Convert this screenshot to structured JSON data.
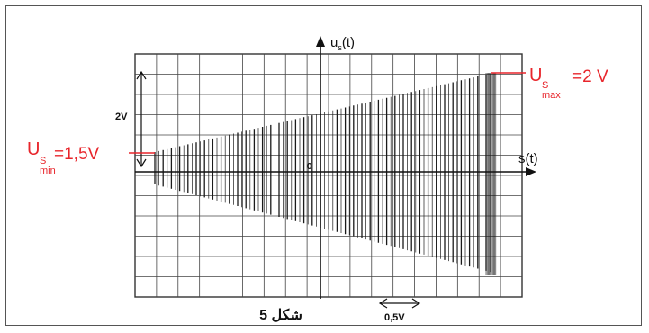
{
  "figure": {
    "caption": "شكل 5",
    "y_axis_label": "u",
    "y_axis_suffix": "(t)",
    "y_axis_sub": "s",
    "x_axis_label": "s(t)",
    "origin_label": "0",
    "vertical_scale_label": "2V",
    "horizontal_scale_label": "0,5V"
  },
  "annotations": {
    "us_min": {
      "symbol": "U",
      "sub_s": "S",
      "sub_tag": "min",
      "value": "=1,5V"
    },
    "us_max": {
      "symbol": "U",
      "sub_s": "S",
      "sub_tag": "max",
      "value": "=2 V"
    }
  },
  "colors": {
    "annotation": "#e8252b",
    "trace": "#222222",
    "grid": "#333333"
  }
}
